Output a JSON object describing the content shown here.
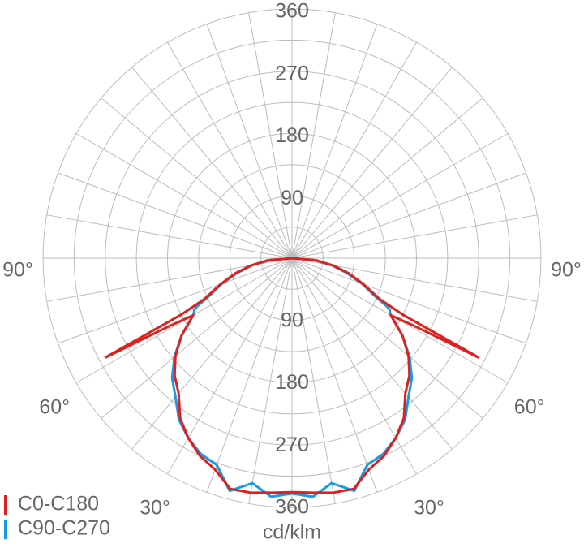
{
  "chart_data": {
    "type": "polar",
    "unit_label": "cd/klm",
    "rlim": [
      0,
      360
    ],
    "rticks": [
      90,
      180,
      270,
      360
    ],
    "angle_ticks": [
      {
        "value": -90,
        "label": "90°"
      },
      {
        "value": -60,
        "label": "60°"
      },
      {
        "value": -30,
        "label": "30°"
      },
      {
        "value": 30,
        "label": "30°"
      },
      {
        "value": 60,
        "label": "60°"
      },
      {
        "value": 90,
        "label": "90°"
      }
    ],
    "x": [
      -90,
      -85,
      -80,
      -75,
      -70,
      -65,
      -63,
      -62,
      -61,
      -60,
      -55,
      -50,
      -45,
      -40,
      -35,
      -30,
      -25,
      -20,
      -15,
      -10,
      -5,
      0,
      5,
      10,
      15,
      20,
      25,
      30,
      35,
      40,
      45,
      50,
      55,
      60,
      61,
      62,
      63,
      65,
      70,
      75,
      80,
      85,
      90
    ],
    "series": [
      {
        "name": "C0-C180",
        "color": "#e0201e",
        "values": [
          0,
          35,
          60,
          85,
          110,
          140,
          180,
          305,
          200,
          165,
          195,
          220,
          240,
          255,
          282,
          300,
          315,
          325,
          345,
          344,
          340,
          338,
          340,
          344,
          345,
          325,
          315,
          300,
          282,
          255,
          240,
          220,
          195,
          165,
          200,
          305,
          180,
          140,
          110,
          85,
          60,
          35,
          0
        ]
      },
      {
        "name": "C90-C270",
        "color": "#1a9ae0",
        "values": [
          0,
          33,
          58,
          82,
          108,
          135,
          155,
          160,
          162,
          165,
          195,
          222,
          245,
          262,
          285,
          300,
          312,
          318,
          348,
          330,
          346,
          340,
          346,
          330,
          348,
          318,
          312,
          300,
          285,
          262,
          245,
          222,
          195,
          165,
          162,
          160,
          155,
          135,
          108,
          82,
          58,
          33,
          0
        ]
      }
    ]
  }
}
